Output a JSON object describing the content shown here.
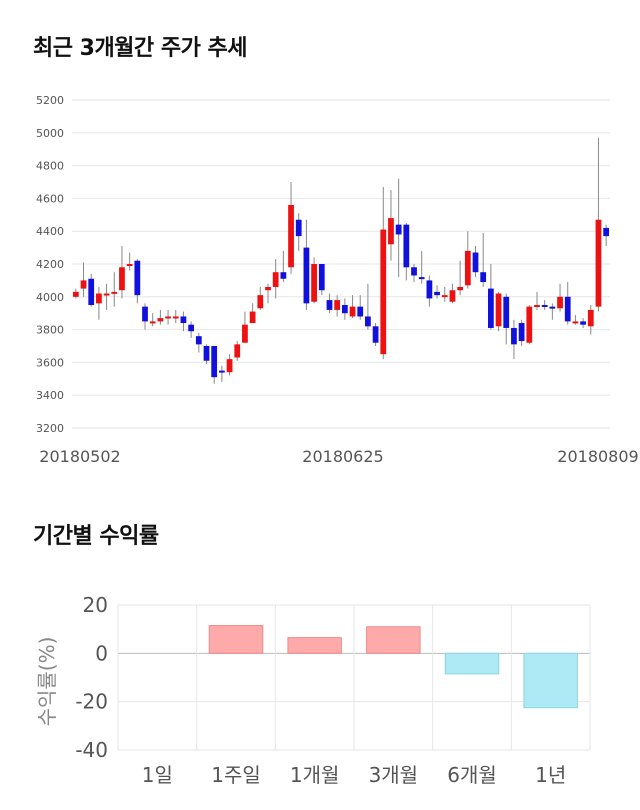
{
  "sections": {
    "price_title": "최근 3개월간 주가 추세",
    "returns_title": "기간별 수익률"
  },
  "colors": {
    "up": "#ee1111",
    "down": "#1111dd",
    "wick": "#888888",
    "positive_bar": "#ffaaaa",
    "negative_bar": "#aeeaf5",
    "grid": "#e6e6e6"
  },
  "chart_data": [
    {
      "type": "candlestick",
      "title": "최근 3개월간 주가 추세",
      "ylim": [
        3200,
        5200
      ],
      "yticks": [
        3200,
        3400,
        3600,
        3800,
        4000,
        4200,
        4400,
        4600,
        4800,
        5000,
        5200
      ],
      "xtick_labels": [
        "20180502",
        "20180625",
        "20180809"
      ],
      "grid": true,
      "candles": [
        [
          4000,
          4030,
          3990,
          4050
        ],
        [
          4050,
          4100,
          4000,
          4210
        ],
        [
          4110,
          3950,
          3940,
          4140
        ],
        [
          3960,
          4020,
          3860,
          4060
        ],
        [
          4020,
          4020,
          3920,
          4080
        ],
        [
          4020,
          4030,
          3940,
          4150
        ],
        [
          4040,
          4180,
          3990,
          4310
        ],
        [
          4200,
          4200,
          4160,
          4270
        ],
        [
          4220,
          4010,
          3960,
          4230
        ],
        [
          3940,
          3850,
          3800,
          3960
        ],
        [
          3850,
          3850,
          3820,
          3900
        ],
        [
          3850,
          3870,
          3830,
          3920
        ],
        [
          3880,
          3880,
          3830,
          3920
        ],
        [
          3880,
          3880,
          3840,
          3920
        ],
        [
          3880,
          3840,
          3790,
          3910
        ],
        [
          3830,
          3790,
          3750,
          3850
        ],
        [
          3760,
          3710,
          3660,
          3780
        ],
        [
          3700,
          3610,
          3590,
          3710
        ],
        [
          3700,
          3510,
          3470,
          3700
        ],
        [
          3550,
          3540,
          3480,
          3580
        ],
        [
          3540,
          3620,
          3520,
          3650
        ],
        [
          3630,
          3710,
          3610,
          3730
        ],
        [
          3720,
          3830,
          3720,
          3910
        ],
        [
          3840,
          3910,
          3840,
          3960
        ],
        [
          3930,
          4010,
          3920,
          4060
        ],
        [
          4040,
          4060,
          3960,
          4080
        ],
        [
          4060,
          4150,
          3990,
          4230
        ],
        [
          4150,
          4110,
          4090,
          4280
        ],
        [
          4180,
          4560,
          4140,
          4700
        ],
        [
          4470,
          4370,
          4280,
          4510
        ],
        [
          4300,
          3960,
          3920,
          4470
        ],
        [
          3970,
          4200,
          3960,
          4240
        ],
        [
          4200,
          4040,
          4010,
          4200
        ],
        [
          3980,
          3920,
          3900,
          4020
        ],
        [
          3920,
          3980,
          3880,
          4010
        ],
        [
          3950,
          3900,
          3860,
          3990
        ],
        [
          3880,
          3940,
          3870,
          4010
        ],
        [
          3940,
          3880,
          3860,
          4010
        ],
        [
          3880,
          3820,
          3800,
          4080
        ],
        [
          3820,
          3720,
          3700,
          3840
        ],
        [
          3650,
          4410,
          3620,
          4670
        ],
        [
          4320,
          4480,
          4220,
          4650
        ],
        [
          4440,
          4380,
          4120,
          4720
        ],
        [
          4440,
          4180,
          4100,
          4450
        ],
        [
          4180,
          4130,
          4090,
          4200
        ],
        [
          4120,
          4110,
          4080,
          4280
        ],
        [
          4100,
          3990,
          3940,
          4130
        ],
        [
          4030,
          4010,
          3990,
          4070
        ],
        [
          4010,
          4010,
          3970,
          4060
        ],
        [
          3970,
          4040,
          3960,
          4080
        ],
        [
          4040,
          4060,
          4010,
          4220
        ],
        [
          4070,
          4280,
          4050,
          4400
        ],
        [
          4270,
          4150,
          4120,
          4310
        ],
        [
          4150,
          4090,
          4060,
          4390
        ],
        [
          4050,
          3810,
          3800,
          4200
        ],
        [
          3820,
          4020,
          3790,
          4030
        ],
        [
          4000,
          3810,
          3710,
          4020
        ],
        [
          3810,
          3710,
          3620,
          3860
        ],
        [
          3840,
          3730,
          3700,
          3860
        ],
        [
          3720,
          3940,
          3710,
          3950
        ],
        [
          3950,
          3950,
          3920,
          4030
        ],
        [
          3950,
          3940,
          3920,
          3980
        ],
        [
          3940,
          3930,
          3860,
          3960
        ],
        [
          3930,
          4000,
          3910,
          4080
        ],
        [
          4000,
          3850,
          3830,
          4090
        ],
        [
          3850,
          3850,
          3830,
          3890
        ],
        [
          3850,
          3830,
          3810,
          3870
        ],
        [
          3820,
          3920,
          3770,
          3950
        ],
        [
          3940,
          4470,
          3910,
          4970
        ],
        [
          4420,
          4370,
          4310,
          4440
        ]
      ]
    },
    {
      "type": "bar",
      "title": "기간별 수익률",
      "categories": [
        "1일",
        "1주일",
        "1개월",
        "3개월",
        "6개월",
        "1년"
      ],
      "values": [
        0,
        11.5,
        6.5,
        11,
        -8.5,
        -22.5
      ],
      "ylabel": "수익률(%)",
      "ylim": [
        -40,
        20
      ],
      "yticks": [
        20,
        0,
        -20,
        -40
      ],
      "grid": true
    }
  ]
}
